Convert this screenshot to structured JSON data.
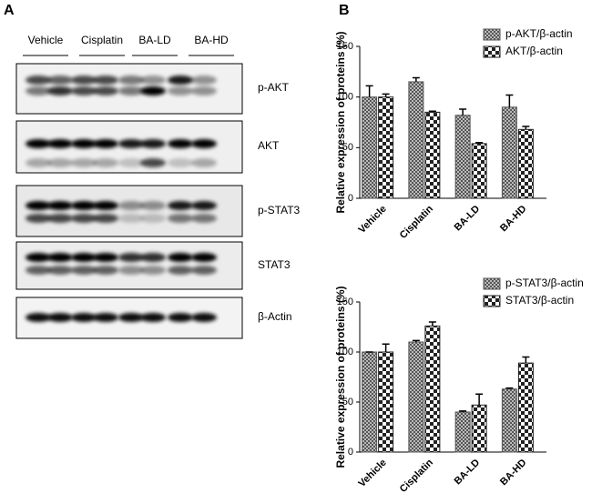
{
  "panel_a": {
    "label": "A",
    "lanes": [
      "Vehicle",
      "Cisplatin",
      "BA-LD",
      "BA-HD"
    ],
    "proteins": [
      "p-AKT",
      "AKT",
      "p-STAT3",
      "STAT3",
      "β-Actin"
    ]
  },
  "panel_b_label": "B",
  "chart_data": [
    {
      "type": "bar",
      "ylabel": "Relative expression of proteins (%)",
      "categories": [
        "Vehicle",
        "Cisplatin",
        "BA-LD",
        "BA-HD"
      ],
      "series": [
        {
          "name": "p-AKT/β-actin",
          "color": "#555555",
          "pattern": "fine",
          "values": [
            100,
            115,
            82,
            90
          ],
          "errors": [
            11,
            4,
            6,
            12
          ]
        },
        {
          "name": "AKT/β-actin",
          "color": "#222222",
          "pattern": "checker",
          "values": [
            100,
            85,
            54,
            68
          ],
          "errors": [
            3,
            1,
            1,
            3
          ]
        }
      ],
      "ylim": [
        0,
        150
      ],
      "yticks": [
        0,
        50,
        100,
        150
      ],
      "legend": "top-right"
    },
    {
      "type": "bar",
      "ylabel": "Relative expression of proteins (%)",
      "categories": [
        "Vehicle",
        "Cisplatin",
        "BA-LD",
        "BA-HD"
      ],
      "series": [
        {
          "name": "p-STAT3/β-actin",
          "color": "#555555",
          "pattern": "fine",
          "values": [
            100,
            110,
            40,
            63
          ],
          "errors": [
            0,
            1.5,
            1,
            1
          ]
        },
        {
          "name": "STAT3/β-actin",
          "color": "#222222",
          "pattern": "checker",
          "values": [
            100,
            126,
            47,
            89
          ],
          "errors": [
            8,
            4,
            11,
            6
          ]
        }
      ],
      "ylim": [
        0,
        150
      ],
      "yticks": [
        0,
        50,
        100,
        150
      ],
      "legend": "top-right"
    }
  ]
}
